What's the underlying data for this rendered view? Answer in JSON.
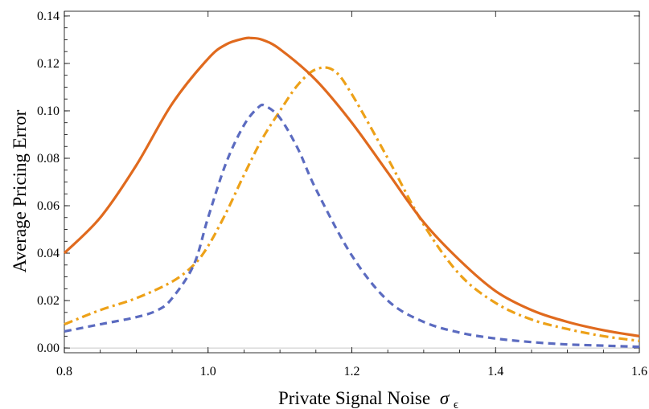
{
  "chart_data": {
    "type": "line",
    "title": "",
    "xlabel": "Private Signal Noise",
    "xlabel_symbol": "σ",
    "xlabel_subscript": "ϵ",
    "ylabel": "Average Pricing Error",
    "xlim": [
      0.8,
      1.6
    ],
    "ylim": [
      -0.002,
      0.142
    ],
    "xticks": [
      0.8,
      1.0,
      1.2,
      1.4,
      1.6
    ],
    "xtick_labels": [
      "0.8",
      "1.0",
      "1.2",
      "1.4",
      "1.6"
    ],
    "yticks": [
      0.0,
      0.02,
      0.04,
      0.06,
      0.08,
      0.1,
      0.12,
      0.14
    ],
    "ytick_labels": [
      "0.00",
      "0.02",
      "0.04",
      "0.06",
      "0.08",
      "0.10",
      "0.12",
      "0.14"
    ],
    "grid": false,
    "legend": "none",
    "series": [
      {
        "style": "solid",
        "color": "#e06a1e",
        "x": [
          0.8,
          0.85,
          0.9,
          0.95,
          1.0,
          1.025,
          1.05,
          1.06,
          1.075,
          1.1,
          1.15,
          1.2,
          1.25,
          1.3,
          1.35,
          1.4,
          1.45,
          1.5,
          1.55,
          1.6
        ],
        "y": [
          0.04,
          0.055,
          0.077,
          0.103,
          0.122,
          0.128,
          0.1305,
          0.1307,
          0.13,
          0.126,
          0.113,
          0.095,
          0.074,
          0.053,
          0.037,
          0.024,
          0.016,
          0.011,
          0.0075,
          0.005
        ]
      },
      {
        "style": "dashdot",
        "color": "#eda118",
        "x": [
          0.8,
          0.85,
          0.9,
          0.95,
          0.98,
          1.0,
          1.025,
          1.05,
          1.075,
          1.1,
          1.125,
          1.15,
          1.175,
          1.2,
          1.25,
          1.3,
          1.35,
          1.4,
          1.45,
          1.5,
          1.55,
          1.6
        ],
        "y": [
          0.01,
          0.016,
          0.021,
          0.028,
          0.035,
          0.043,
          0.057,
          0.073,
          0.088,
          0.1,
          0.111,
          0.1175,
          0.117,
          0.107,
          0.08,
          0.052,
          0.031,
          0.019,
          0.012,
          0.008,
          0.005,
          0.003
        ]
      },
      {
        "style": "dashed",
        "color": "#5b6bc0",
        "x": [
          0.8,
          0.85,
          0.9,
          0.93,
          0.95,
          0.98,
          1.0,
          1.025,
          1.05,
          1.07,
          1.08,
          1.1,
          1.125,
          1.15,
          1.2,
          1.25,
          1.3,
          1.35,
          1.4,
          1.45,
          1.5,
          1.55,
          1.6
        ],
        "y": [
          0.007,
          0.01,
          0.013,
          0.016,
          0.021,
          0.035,
          0.055,
          0.078,
          0.094,
          0.1015,
          0.102,
          0.097,
          0.084,
          0.067,
          0.039,
          0.02,
          0.011,
          0.0065,
          0.004,
          0.0025,
          0.0015,
          0.001,
          0.0005
        ]
      }
    ]
  }
}
